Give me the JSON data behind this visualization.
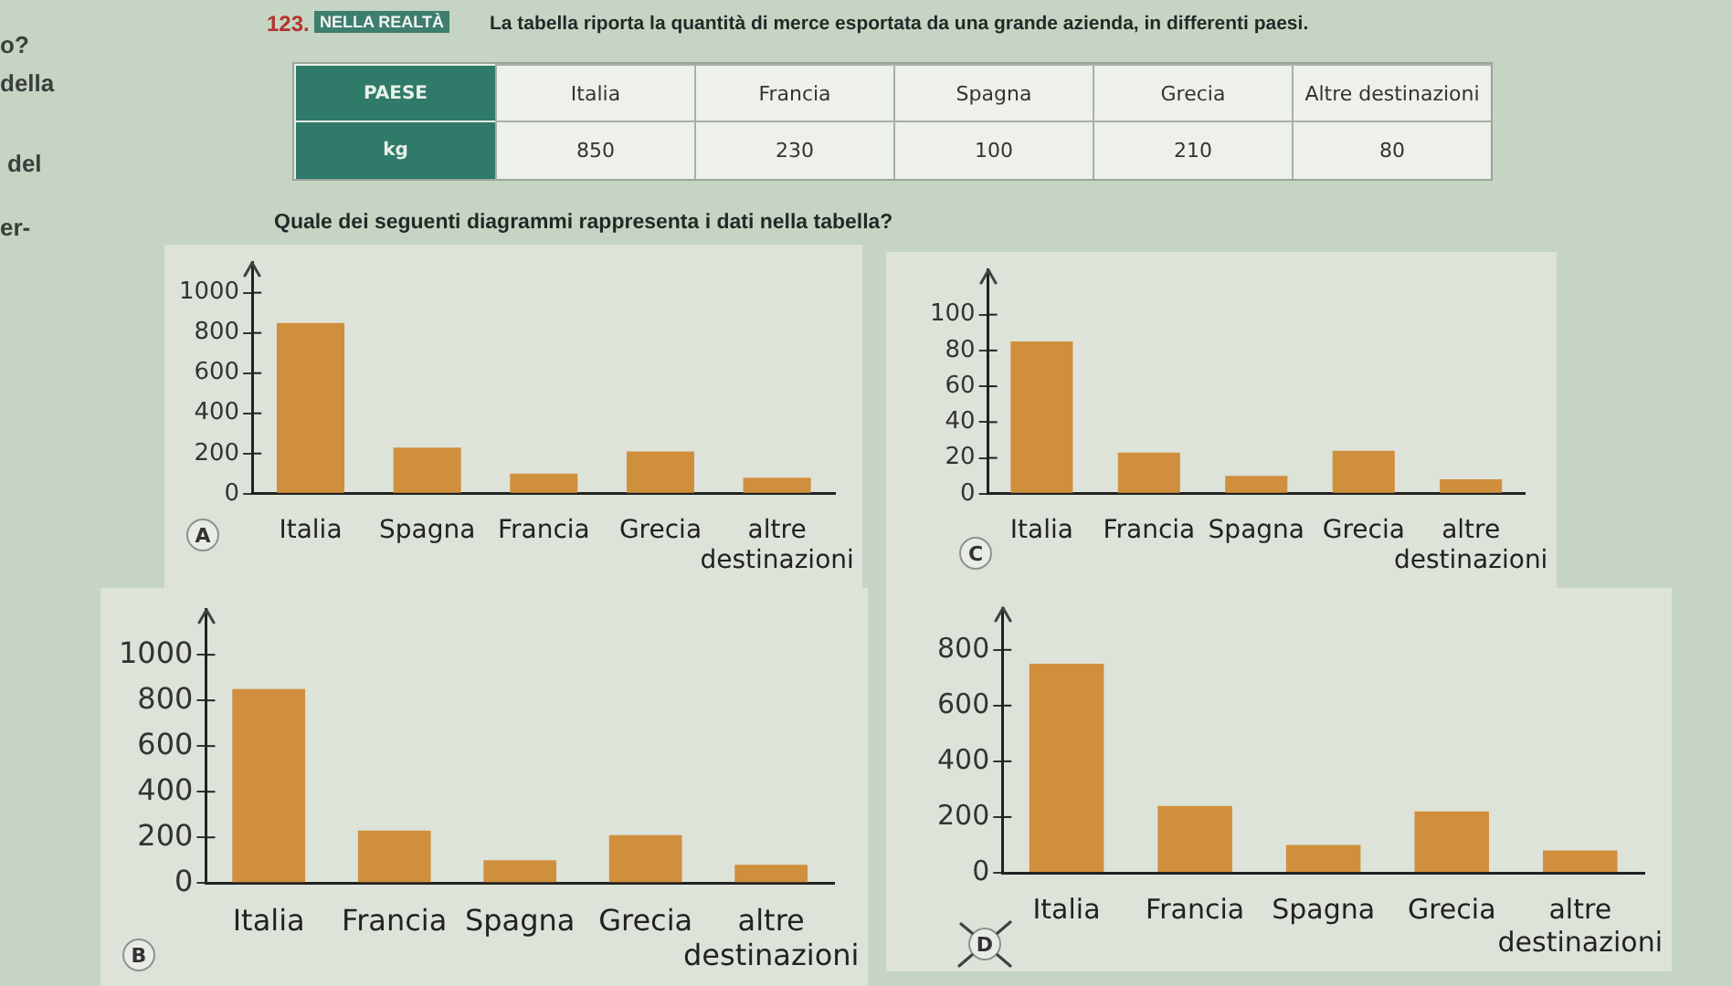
{
  "chart_data": [
    {
      "type": "other",
      "title": "La tabella riporta la quantità di merce esportata da una grande azienda, in differenti paesi.",
      "xlabel": "PAESE",
      "ylabel": "kg",
      "categories": [
        "Italia",
        "Francia",
        "Spagna",
        "Grecia",
        "Altre destinazioni"
      ],
      "values": [
        850,
        230,
        100,
        210,
        80
      ],
      "data_labels": true,
      "annotations": [
        "123.",
        "NELLA REALTÀ",
        "Quale dei seguenti diagrammi rappresenta i dati nella tabella?",
        "o?",
        "della",
        "del",
        "er-"
      ]
    },
    {
      "type": "bar",
      "categories": [
        "Italia",
        "Spagna",
        "Francia",
        "Grecia",
        "altre destinazioni"
      ],
      "values": [
        850,
        230,
        100,
        210,
        80
      ],
      "color": "#d08f3d",
      "ylim": [
        0,
        1150
      ],
      "yticks": [
        0,
        200,
        400,
        600,
        800,
        1000
      ],
      "annotations": [
        "A"
      ]
    },
    {
      "type": "bar",
      "categories": [
        "Italia",
        "Francia",
        "Spagna",
        "Grecia",
        "altre destinazioni"
      ],
      "values": [
        85,
        23,
        10,
        24,
        8
      ],
      "color": "#d08f3d",
      "ylim": [
        0,
        125
      ],
      "yticks": [
        0,
        20,
        40,
        60,
        80,
        100
      ],
      "annotations": [
        "C"
      ]
    },
    {
      "type": "bar",
      "categories": [
        "Italia",
        "Francia",
        "Spagna",
        "Grecia",
        "altre destinazioni"
      ],
      "values": [
        850,
        230,
        100,
        210,
        80
      ],
      "color": "#d08f3d",
      "ylim": [
        0,
        1200
      ],
      "yticks": [
        0,
        200,
        400,
        600,
        800,
        1000
      ],
      "annotations": [
        "B"
      ]
    },
    {
      "type": "bar",
      "categories": [
        "Italia",
        "Francia",
        "Spagna",
        "Grecia",
        "altre destinazioni"
      ],
      "values": [
        750,
        240,
        100,
        220,
        80
      ],
      "color": "#d08f3d",
      "ylim": [
        0,
        950
      ],
      "yticks": [
        0,
        200,
        400,
        600,
        800
      ],
      "annotations": [
        "D"
      ]
    }
  ]
}
